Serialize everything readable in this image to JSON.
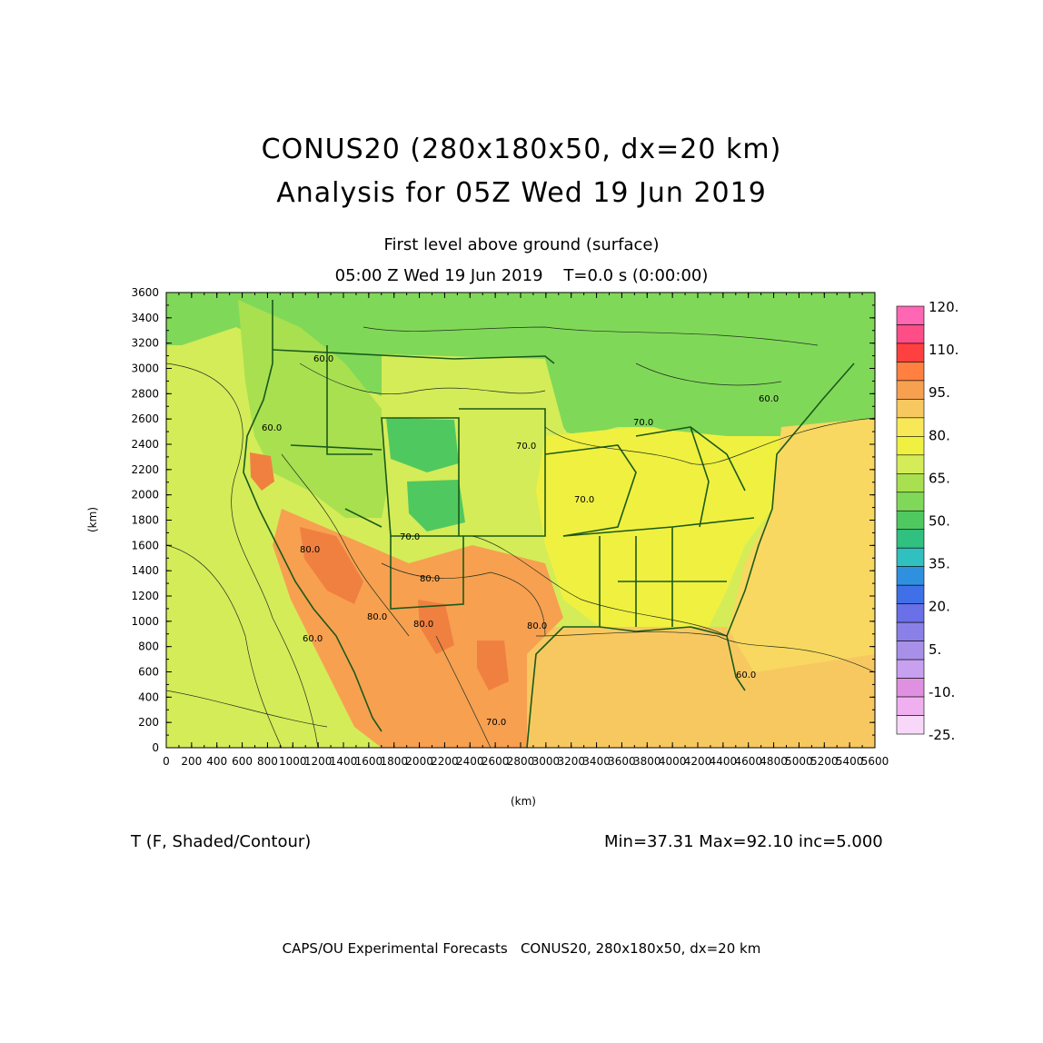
{
  "title": {
    "line1": "CONUS20 (280x180x50, dx=20 km)",
    "line2": "Analysis for 05Z Wed 19 Jun 2019"
  },
  "subtitle": {
    "level": "First level above ground (surface)",
    "time": "05:00 Z Wed 19 Jun 2019    T=0.0 s (0:00:00)"
  },
  "axes": {
    "x_unit": "(km)",
    "y_unit": "(km)",
    "x_ticks": [
      "0",
      "200",
      "400",
      "600",
      "800",
      "1000",
      "1200",
      "1400",
      "1600",
      "1800",
      "2000",
      "2200",
      "2400",
      "2600",
      "2800",
      "3000",
      "3200",
      "3400",
      "3600",
      "3800",
      "4000",
      "4200",
      "4400",
      "4600",
      "4800",
      "5000",
      "5200",
      "5400",
      "5600"
    ],
    "y_ticks": [
      "0",
      "200",
      "400",
      "600",
      "800",
      "1000",
      "1200",
      "1400",
      "1600",
      "1800",
      "2000",
      "2200",
      "2400",
      "2600",
      "2800",
      "3000",
      "3200",
      "3400",
      "3600"
    ],
    "x_range_km": [
      0,
      5600
    ],
    "y_range_km": [
      0,
      3600
    ]
  },
  "colorbar": {
    "labels": [
      "120.",
      "110.",
      "95.",
      "80.",
      "65.",
      "50.",
      "35.",
      "20.",
      "5.",
      "-10.",
      "-25."
    ],
    "colors": [
      "#ff66b3",
      "#ff4d88",
      "#ff4040",
      "#ff8040",
      "#f7a050",
      "#f8c860",
      "#f8e858",
      "#f0f040",
      "#d4ec58",
      "#a8e050",
      "#80d858",
      "#50c860",
      "#30c080",
      "#30c0c0",
      "#3090e0",
      "#4070e8",
      "#6a70e8",
      "#8a80e8",
      "#a890e8",
      "#c8a0f0",
      "#e090e0",
      "#f0b0f0",
      "#f8d8f8"
    ]
  },
  "map": {
    "contour_labels": [
      "60.0",
      "60.0",
      "60.0",
      "60.0",
      "60.0",
      "70.0",
      "70.0",
      "70.0",
      "70.0",
      "80.0",
      "80.0",
      "80.0",
      "80.0",
      "80.0",
      "70.0"
    ],
    "regions": {
      "ocean_west": "#d4ec58",
      "west_mountain": "#a8e050",
      "north": "#80d858",
      "plains": "#d4ec58",
      "southeast": "#f0f040",
      "gulf": "#f8c860",
      "atlantic": "#f8d860",
      "desert": "#f7a050",
      "hot": "#f08040",
      "cold": "#50c860",
      "coast": "#1a5a1a"
    }
  },
  "variable": "T (F, Shaded/Contour)",
  "stats": "Min=37.31 Max=92.10 inc=5.000",
  "footer": "CAPS/OU Experimental Forecasts   CONUS20, 280x180x50, dx=20 km"
}
